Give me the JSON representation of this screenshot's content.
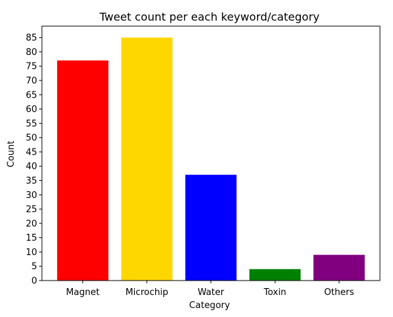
{
  "chart_data": {
    "type": "bar",
    "title": "Tweet count per each keyword/category",
    "xlabel": "Category",
    "ylabel": "Count",
    "categories": [
      "Magnet",
      "Microchip",
      "Water",
      "Toxin",
      "Others"
    ],
    "values": [
      77,
      85,
      37,
      4,
      9
    ],
    "colors": [
      "#ff0000",
      "#ffd700",
      "#0000ff",
      "#008000",
      "#800080"
    ],
    "ylim": [
      0,
      89
    ],
    "yticks": [
      0,
      5,
      10,
      15,
      20,
      25,
      30,
      35,
      40,
      45,
      50,
      55,
      60,
      65,
      70,
      75,
      80,
      85
    ],
    "grid": false,
    "legend": "none"
  }
}
